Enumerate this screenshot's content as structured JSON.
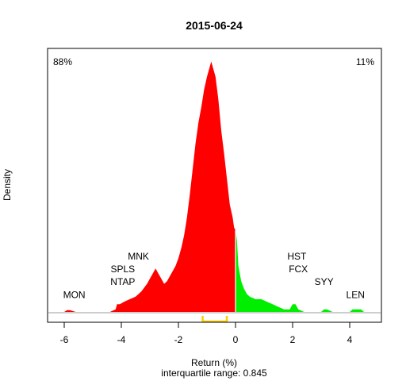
{
  "chart_data": {
    "type": "area",
    "title": "2015-06-24",
    "xlabel": "Return (%)",
    "subtitle": "interquartile range: 0.845",
    "ylabel": "Density",
    "xlim": [
      -6.3,
      5.0
    ],
    "ylim": [
      0,
      1.0
    ],
    "x_ticks": [
      -6,
      -4,
      -2,
      0,
      2,
      4
    ],
    "x_tick_labels": [
      "-6",
      "-4",
      "-2",
      "0",
      "2",
      "4"
    ],
    "grid": false,
    "negative_share_label": "88%",
    "positive_share_label": "11%",
    "colors": {
      "negative": "#ff0000",
      "positive": "#00ee00",
      "iqr_marker": "#ffcc00",
      "baseline": "#bebebe",
      "neg_label": "#cc0000",
      "pos_label": "#008800"
    },
    "density_curve": {
      "x": [
        -6.3,
        -6.0,
        -5.9,
        -5.8,
        -5.6,
        -5.3,
        -4.8,
        -4.4,
        -4.2,
        -4.15,
        -4.05,
        -3.9,
        -3.7,
        -3.5,
        -3.3,
        -3.1,
        -3.0,
        -2.9,
        -2.8,
        -2.7,
        -2.6,
        -2.5,
        -2.4,
        -2.3,
        -2.2,
        -2.1,
        -2.0,
        -1.9,
        -1.8,
        -1.7,
        -1.6,
        -1.5,
        -1.4,
        -1.3,
        -1.2,
        -1.1,
        -1.0,
        -0.9,
        -0.85,
        -0.8,
        -0.7,
        -0.6,
        -0.5,
        -0.4,
        -0.3,
        -0.2,
        -0.1,
        -0.05,
        0.0,
        0.05,
        0.1,
        0.2,
        0.3,
        0.4,
        0.5,
        0.7,
        0.9,
        1.1,
        1.3,
        1.5,
        1.7,
        1.9,
        2.0,
        2.1,
        2.2,
        2.4,
        2.6,
        2.8,
        3.0,
        3.1,
        3.2,
        3.4,
        3.6,
        3.8,
        4.0,
        4.1,
        4.2,
        4.3,
        4.4,
        4.5,
        4.6,
        4.8,
        5.0
      ],
      "y": [
        0.0,
        0.0,
        0.007,
        0.007,
        0.0,
        0.0,
        0.0,
        0.0,
        0.01,
        0.03,
        0.03,
        0.04,
        0.05,
        0.06,
        0.08,
        0.11,
        0.13,
        0.15,
        0.17,
        0.15,
        0.13,
        0.11,
        0.12,
        0.14,
        0.16,
        0.18,
        0.21,
        0.25,
        0.3,
        0.37,
        0.46,
        0.56,
        0.66,
        0.74,
        0.8,
        0.87,
        0.92,
        0.96,
        0.98,
        0.96,
        0.92,
        0.83,
        0.71,
        0.62,
        0.52,
        0.42,
        0.37,
        0.33,
        0.32,
        0.28,
        0.18,
        0.12,
        0.09,
        0.07,
        0.06,
        0.05,
        0.05,
        0.04,
        0.03,
        0.02,
        0.01,
        0.01,
        0.03,
        0.03,
        0.01,
        0.0,
        0.0,
        0.0,
        0.0,
        0.01,
        0.01,
        0.0,
        0.0,
        0.0,
        0.0,
        0.01,
        0.01,
        0.01,
        0.01,
        0.0,
        0.0,
        0.0,
        0.0
      ]
    },
    "iqr": {
      "low": -1.15,
      "high": -0.305
    },
    "annotations": [
      {
        "text": "MON",
        "x": -5.65,
        "y": 0.055
      },
      {
        "text": "NTAP",
        "x": -3.95,
        "y": 0.105
      },
      {
        "text": "SPLS",
        "x": -3.95,
        "y": 0.155
      },
      {
        "text": "MNK",
        "x": -3.4,
        "y": 0.205
      },
      {
        "text": "HST",
        "x": 2.15,
        "y": 0.205
      },
      {
        "text": "FCX",
        "x": 2.2,
        "y": 0.155
      },
      {
        "text": "SYY",
        "x": 3.1,
        "y": 0.105
      },
      {
        "text": "LEN",
        "x": 4.2,
        "y": 0.055
      }
    ]
  }
}
